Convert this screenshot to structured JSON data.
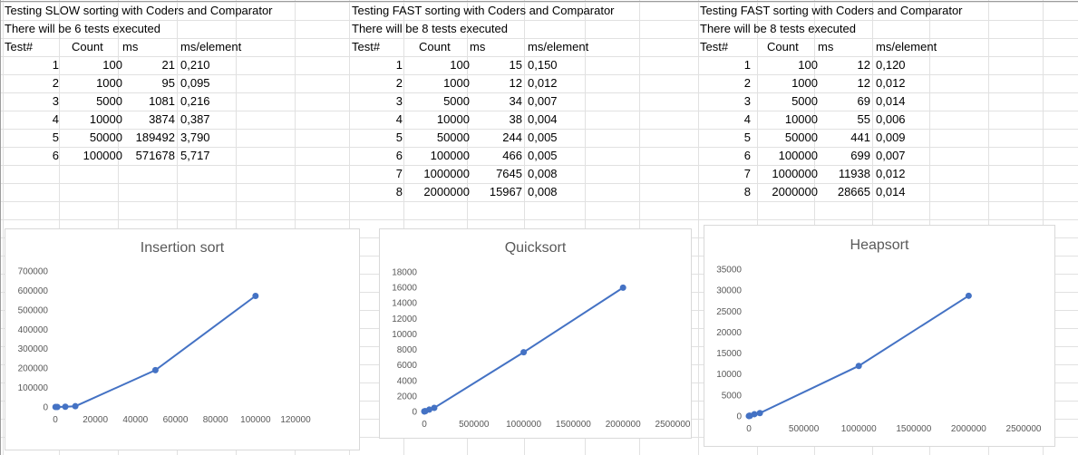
{
  "blocks": [
    {
      "title": "Testing SLOW sorting with Coders and Comparator",
      "subtitle": "There will be 6 tests executed",
      "headers": [
        "Test#",
        "Count",
        "ms",
        "ms/element"
      ],
      "rows": [
        [
          "1",
          "100",
          "21",
          "0,210"
        ],
        [
          "2",
          "1000",
          "95",
          "0,095"
        ],
        [
          "3",
          "5000",
          "1081",
          "0,216"
        ],
        [
          "4",
          "10000",
          "3874",
          "0,387"
        ],
        [
          "5",
          "50000",
          "189492",
          "3,790"
        ],
        [
          "6",
          "100000",
          "571678",
          "5,717"
        ]
      ]
    },
    {
      "title": "Testing FAST sorting with Coders and Comparator",
      "subtitle": "There will be 8 tests executed",
      "headers": [
        "Test#",
        "Count",
        "ms",
        "ms/element"
      ],
      "rows": [
        [
          "1",
          "100",
          "15",
          "0,150"
        ],
        [
          "2",
          "1000",
          "12",
          "0,012"
        ],
        [
          "3",
          "5000",
          "34",
          "0,007"
        ],
        [
          "4",
          "10000",
          "38",
          "0,004"
        ],
        [
          "5",
          "50000",
          "244",
          "0,005"
        ],
        [
          "6",
          "100000",
          "466",
          "0,005"
        ],
        [
          "7",
          "1000000",
          "7645",
          "0,008"
        ],
        [
          "8",
          "2000000",
          "15967",
          "0,008"
        ]
      ]
    },
    {
      "title": "Testing FAST sorting with Coders and Comparator",
      "subtitle": "There will be 8 tests executed",
      "headers": [
        "Test#",
        "Count",
        "ms",
        "ms/element"
      ],
      "rows": [
        [
          "1",
          "100",
          "12",
          "0,120"
        ],
        [
          "2",
          "1000",
          "12",
          "0,012"
        ],
        [
          "3",
          "5000",
          "69",
          "0,014"
        ],
        [
          "4",
          "10000",
          "55",
          "0,006"
        ],
        [
          "5",
          "50000",
          "441",
          "0,009"
        ],
        [
          "6",
          "100000",
          "699",
          "0,007"
        ],
        [
          "7",
          "1000000",
          "11938",
          "0,012"
        ],
        [
          "8",
          "2000000",
          "28665",
          "0,014"
        ]
      ]
    }
  ],
  "chart_data": [
    {
      "type": "scatter",
      "title": "Insertion sort",
      "x": [
        100,
        1000,
        5000,
        10000,
        50000,
        100000
      ],
      "y": [
        21,
        95,
        1081,
        3874,
        189492,
        571678
      ],
      "xlim": [
        0,
        120000
      ],
      "ylim": [
        0,
        700000
      ],
      "xticks": [
        "0",
        "20000",
        "40000",
        "60000",
        "80000",
        "100000",
        "120000"
      ],
      "yticks": [
        "0",
        "100000",
        "200000",
        "300000",
        "400000",
        "500000",
        "600000",
        "700000"
      ],
      "color": "#4472c4",
      "grid": false
    },
    {
      "type": "scatter",
      "title": "Quicksort",
      "x": [
        100,
        1000,
        5000,
        10000,
        50000,
        100000,
        1000000,
        2000000
      ],
      "y": [
        15,
        12,
        34,
        38,
        244,
        466,
        7645,
        15967
      ],
      "xlim": [
        0,
        2500000
      ],
      "ylim": [
        0,
        18000
      ],
      "xticks": [
        "0",
        "500000",
        "1000000",
        "1500000",
        "2000000",
        "2500000"
      ],
      "yticks": [
        "0",
        "2000",
        "4000",
        "6000",
        "8000",
        "10000",
        "12000",
        "14000",
        "16000",
        "18000"
      ],
      "color": "#4472c4",
      "grid": false
    },
    {
      "type": "scatter",
      "title": "Heapsort",
      "x": [
        100,
        1000,
        5000,
        10000,
        50000,
        100000,
        1000000,
        2000000
      ],
      "y": [
        12,
        12,
        69,
        55,
        441,
        699,
        11938,
        28665
      ],
      "xlim": [
        0,
        2500000
      ],
      "ylim": [
        0,
        35000
      ],
      "xticks": [
        "0",
        "500000",
        "1000000",
        "1500000",
        "2000000",
        "2500000"
      ],
      "yticks": [
        "0",
        "5000",
        "10000",
        "15000",
        "20000",
        "25000",
        "30000",
        "35000"
      ],
      "color": "#4472c4",
      "grid": false
    }
  ]
}
